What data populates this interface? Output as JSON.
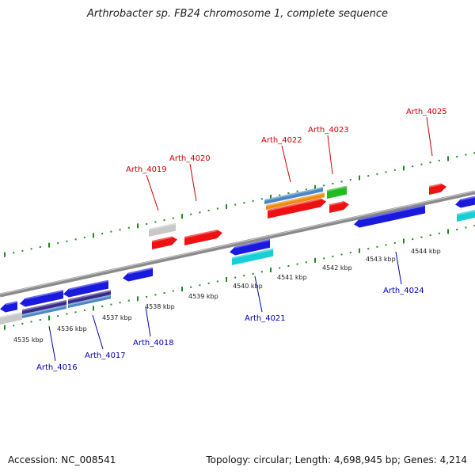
{
  "title": "Arthrobacter sp. FB24 chromosome 1, complete sequence",
  "footer": {
    "accession": "Accession: NC_008541",
    "summary": "Topology: circular; Length: 4,698,945 bp; Genes: 4,214"
  },
  "colors": {
    "forward_label": "#cc0000",
    "reverse_label": "#0000aa",
    "backbone": "#8a8a8a",
    "ticks": "#228822",
    "red": "#ee1111",
    "blue": "#1a1adf",
    "cyan": "#18cfd6",
    "green": "#22bb22",
    "grey": "#c8c8c8",
    "steelblue": "#4a86c6",
    "orange": "#f08a10",
    "purple": "#3a2a8a"
  },
  "kbp_labels": [
    "4535 kbp",
    "4536 kbp",
    "4537 kbp",
    "4538 kbp",
    "4539 kbp",
    "4540 kbp",
    "4541 kbp",
    "4542 kbp",
    "4543 kbp",
    "4544 kbp"
  ],
  "gene_labels": {
    "forward": [
      "Arth_4019",
      "Arth_4020",
      "Arth_4022",
      "Arth_4023",
      "Arth_4025"
    ],
    "reverse": [
      "Arth_4016",
      "Arth_4017",
      "Arth_4018",
      "Arth_4021",
      "Arth_4024"
    ]
  }
}
